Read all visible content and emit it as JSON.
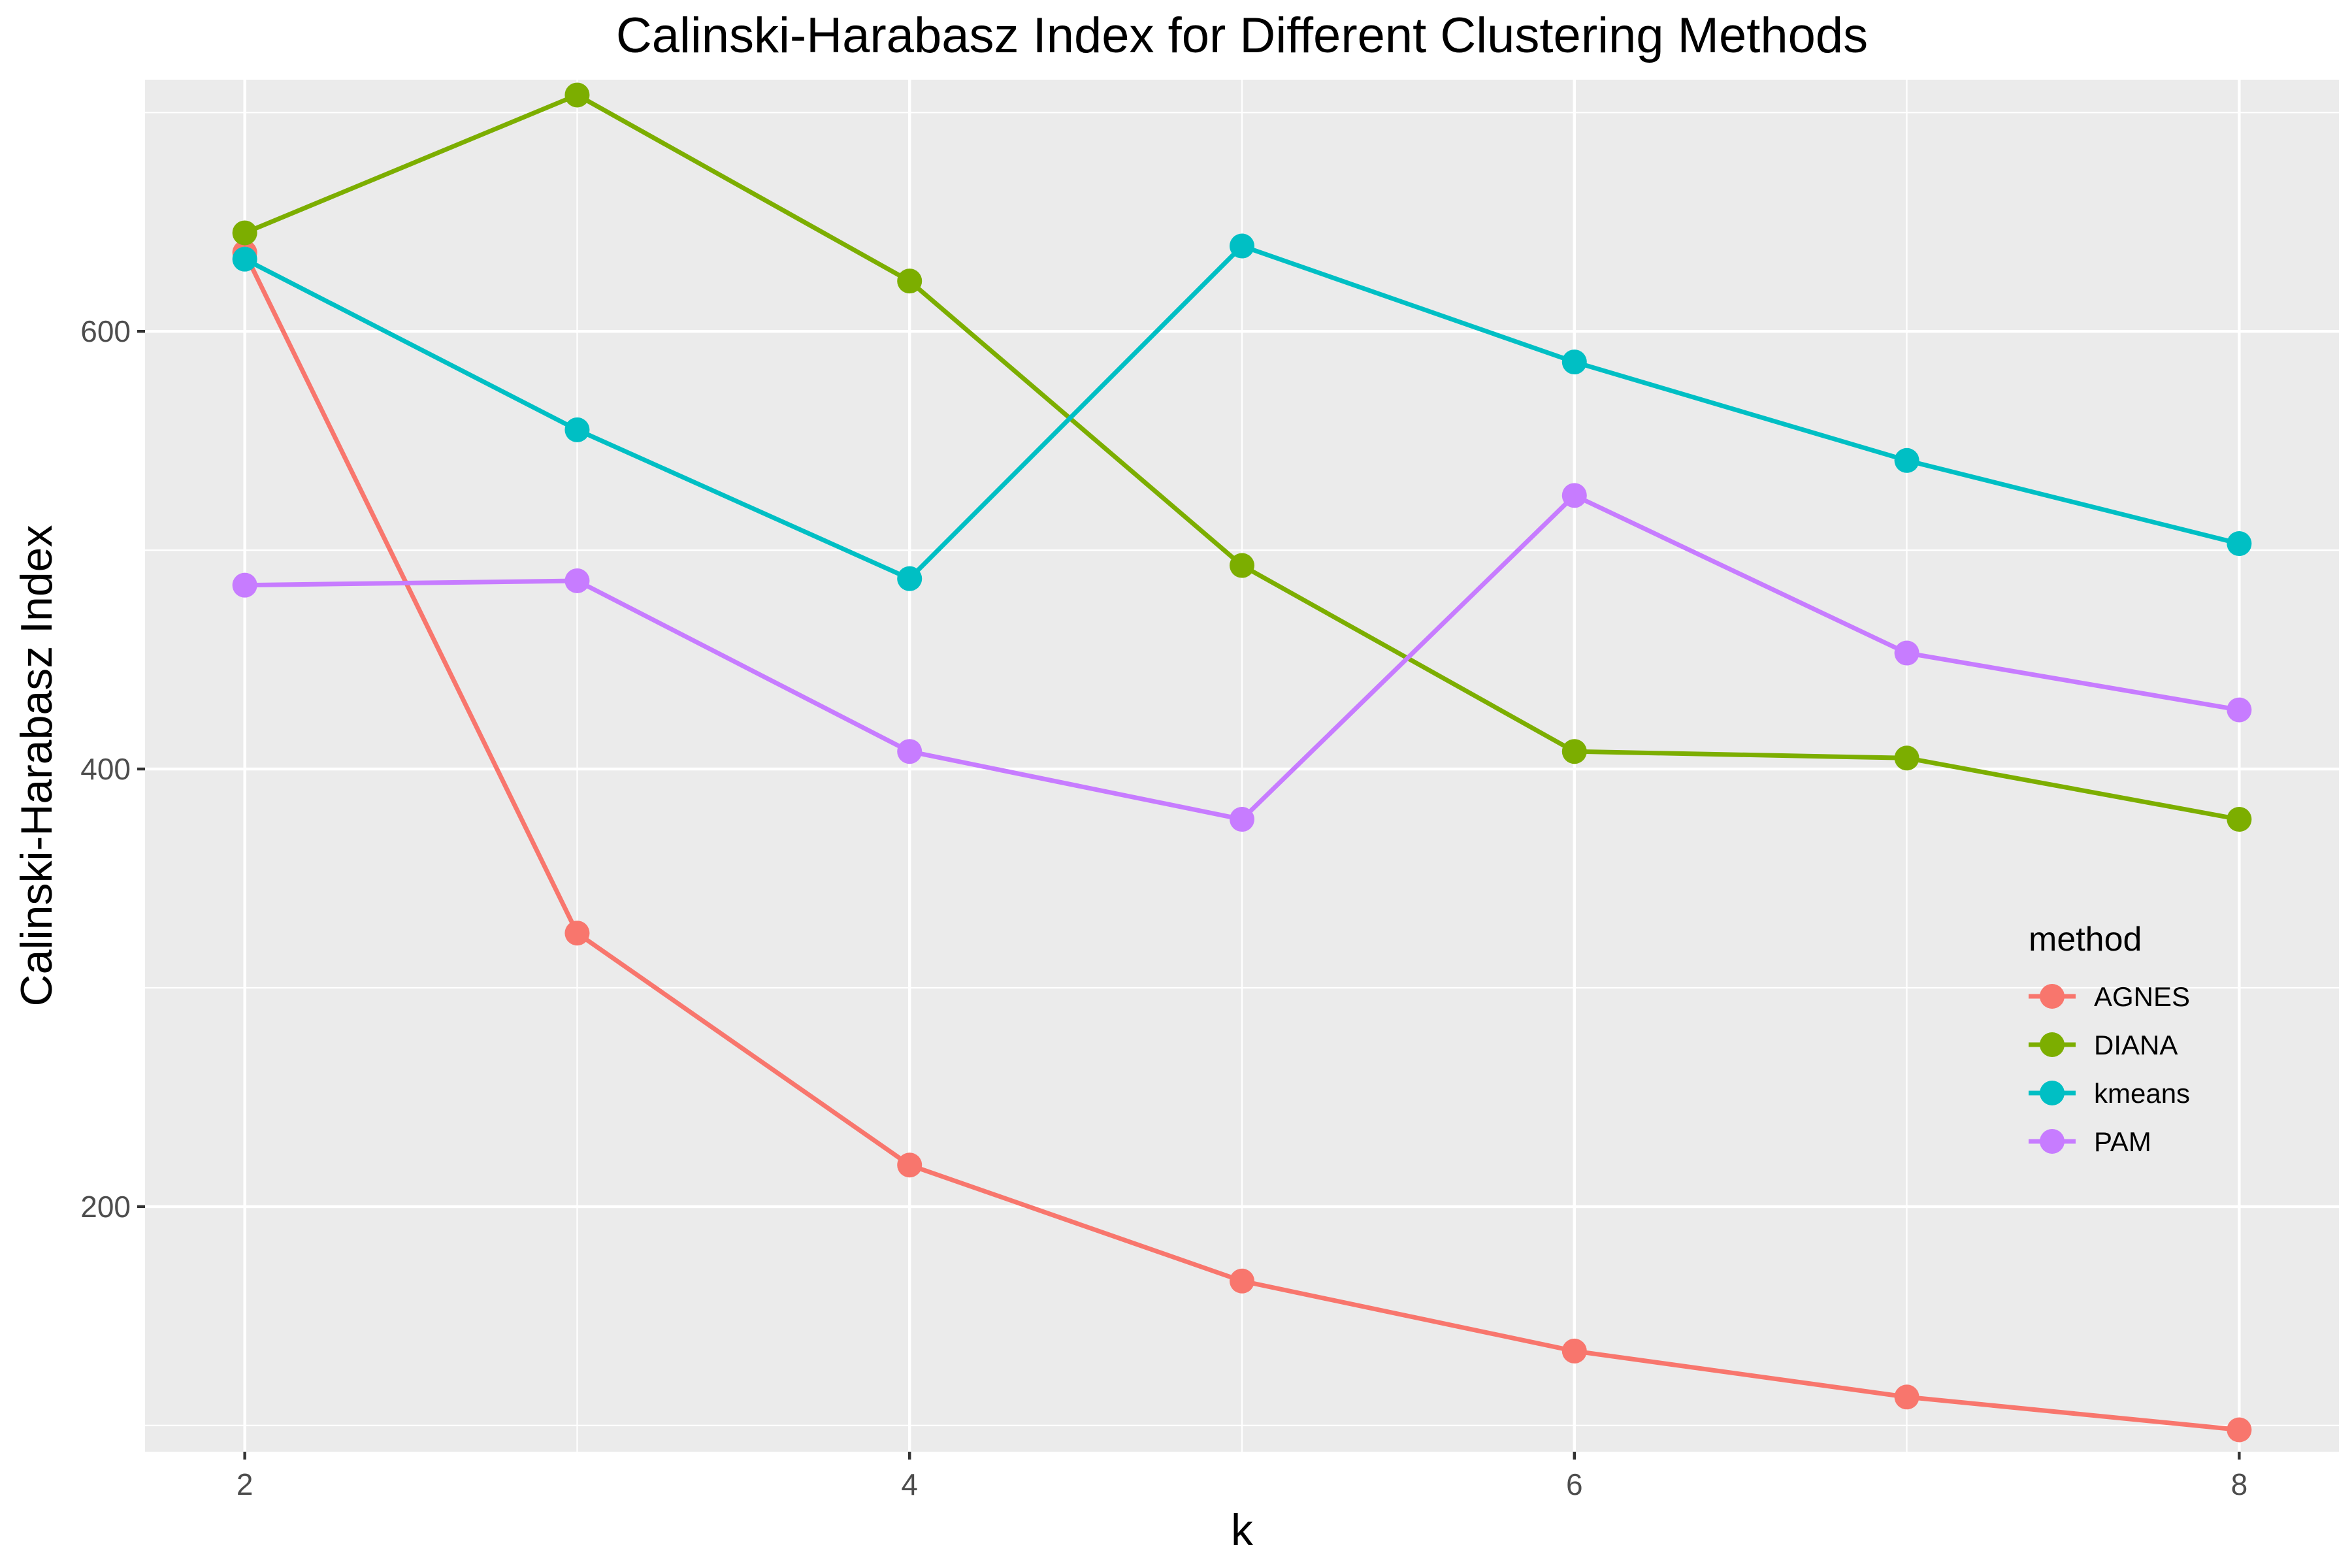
{
  "chart_data": {
    "type": "line",
    "title": "Calinski-Harabasz Index for Different Clustering Methods",
    "xlabel": "k",
    "ylabel": "Calinski-Harabasz Index",
    "x": [
      2,
      3,
      4,
      5,
      6,
      7,
      8
    ],
    "xlim": [
      1.7,
      8.3
    ],
    "ylim": [
      88,
      715
    ],
    "x_ticks": [
      2,
      4,
      6,
      8
    ],
    "y_ticks": [
      200,
      400,
      600
    ],
    "grid": true,
    "background": "#ebebeb",
    "gridline_color": "#ffffff",
    "legend": {
      "title": "method",
      "position": "right"
    },
    "series": [
      {
        "name": "AGNES",
        "color": "#f8766d",
        "values": [
          636,
          325,
          219,
          166,
          134,
          113,
          98
        ]
      },
      {
        "name": "DIANA",
        "color": "#7cae00",
        "values": [
          645,
          708,
          623,
          493,
          408,
          405,
          377
        ]
      },
      {
        "name": "kmeans",
        "color": "#00bfc4",
        "values": [
          633,
          555,
          487,
          639,
          586,
          541,
          503
        ]
      },
      {
        "name": "PAM",
        "color": "#c77cff",
        "values": [
          484,
          486,
          408,
          377,
          525,
          453,
          427
        ]
      }
    ]
  }
}
